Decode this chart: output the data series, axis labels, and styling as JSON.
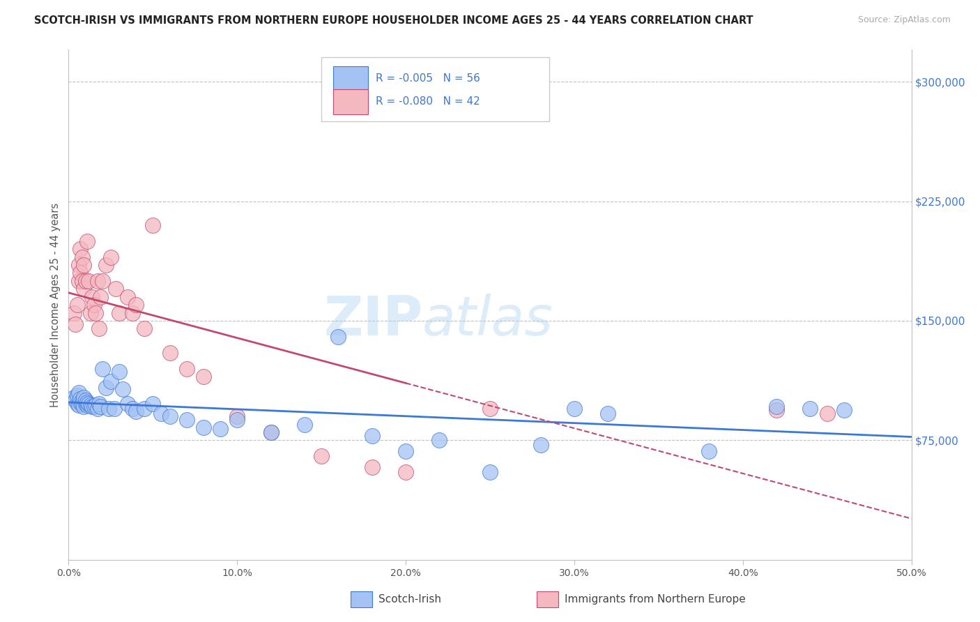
{
  "title": "SCOTCH-IRISH VS IMMIGRANTS FROM NORTHERN EUROPE HOUSEHOLDER INCOME AGES 25 - 44 YEARS CORRELATION CHART",
  "source": "Source: ZipAtlas.com",
  "xlabel_ticks": [
    "0.0%",
    "10.0%",
    "20.0%",
    "30.0%",
    "40.0%",
    "50.0%"
  ],
  "xlabel_tick_vals": [
    0,
    0.1,
    0.2,
    0.3,
    0.4,
    0.5
  ],
  "ylabel_ticks": [
    "$75,000",
    "$150,000",
    "$225,000",
    "$300,000"
  ],
  "ylabel_tick_vals": [
    75000,
    150000,
    225000,
    300000
  ],
  "xlim": [
    0,
    0.5
  ],
  "ylim": [
    0,
    320000
  ],
  "ylabel": "Householder Income Ages 25 - 44 years",
  "legend_label1": "Scotch-Irish",
  "legend_label2": "Immigrants from Northern Europe",
  "r1": "-0.005",
  "n1": "56",
  "r2": "-0.080",
  "n2": "42",
  "color1": "#a4c2f4",
  "color2": "#f4b8c1",
  "edge1": "#3c78d8",
  "edge2": "#c2496d",
  "trendline1_color": "#3c78d8",
  "trendline2_color": "#c2496d",
  "watermark": "ZIPatlas",
  "background_color": "#ffffff",
  "grid_color": "#c0c0c0",
  "scotch_irish_x": [
    0.003,
    0.004,
    0.005,
    0.005,
    0.006,
    0.006,
    0.007,
    0.007,
    0.008,
    0.008,
    0.009,
    0.009,
    0.01,
    0.01,
    0.011,
    0.011,
    0.012,
    0.013,
    0.014,
    0.015,
    0.016,
    0.017,
    0.018,
    0.019,
    0.02,
    0.022,
    0.024,
    0.025,
    0.027,
    0.03,
    0.032,
    0.035,
    0.038,
    0.04,
    0.045,
    0.05,
    0.055,
    0.06,
    0.07,
    0.08,
    0.09,
    0.1,
    0.12,
    0.14,
    0.16,
    0.18,
    0.2,
    0.22,
    0.25,
    0.28,
    0.3,
    0.32,
    0.38,
    0.42,
    0.44,
    0.46
  ],
  "scotch_irish_y": [
    102000,
    100000,
    98000,
    103000,
    97000,
    105000,
    99000,
    101000,
    100000,
    98000,
    96000,
    102000,
    98000,
    100000,
    97000,
    99000,
    98000,
    97000,
    96000,
    96000,
    97000,
    95000,
    98000,
    96000,
    120000,
    108000,
    95000,
    112000,
    95000,
    118000,
    107000,
    98000,
    95000,
    93000,
    95000,
    98000,
    92000,
    90000,
    88000,
    83000,
    82000,
    88000,
    80000,
    85000,
    140000,
    78000,
    68000,
    75000,
    55000,
    72000,
    95000,
    92000,
    68000,
    96000,
    95000,
    94000
  ],
  "ne_immigrants_x": [
    0.003,
    0.004,
    0.005,
    0.006,
    0.006,
    0.007,
    0.007,
    0.008,
    0.008,
    0.009,
    0.009,
    0.01,
    0.011,
    0.012,
    0.013,
    0.014,
    0.015,
    0.016,
    0.017,
    0.018,
    0.019,
    0.02,
    0.022,
    0.025,
    0.028,
    0.03,
    0.035,
    0.038,
    0.04,
    0.045,
    0.05,
    0.06,
    0.07,
    0.08,
    0.1,
    0.12,
    0.15,
    0.18,
    0.2,
    0.25,
    0.42,
    0.45
  ],
  "ne_immigrants_y": [
    155000,
    148000,
    160000,
    185000,
    175000,
    195000,
    180000,
    190000,
    175000,
    170000,
    185000,
    175000,
    200000,
    175000,
    155000,
    165000,
    160000,
    155000,
    175000,
    145000,
    165000,
    175000,
    185000,
    190000,
    170000,
    155000,
    165000,
    155000,
    160000,
    145000,
    210000,
    130000,
    120000,
    115000,
    90000,
    80000,
    65000,
    58000,
    55000,
    95000,
    94000,
    92000
  ],
  "trendline1_x0": 0.003,
  "trendline1_x1": 0.46,
  "trendline2_x0": 0.003,
  "trendline2_solid_end": 0.2,
  "trendline2_x1": 0.46
}
